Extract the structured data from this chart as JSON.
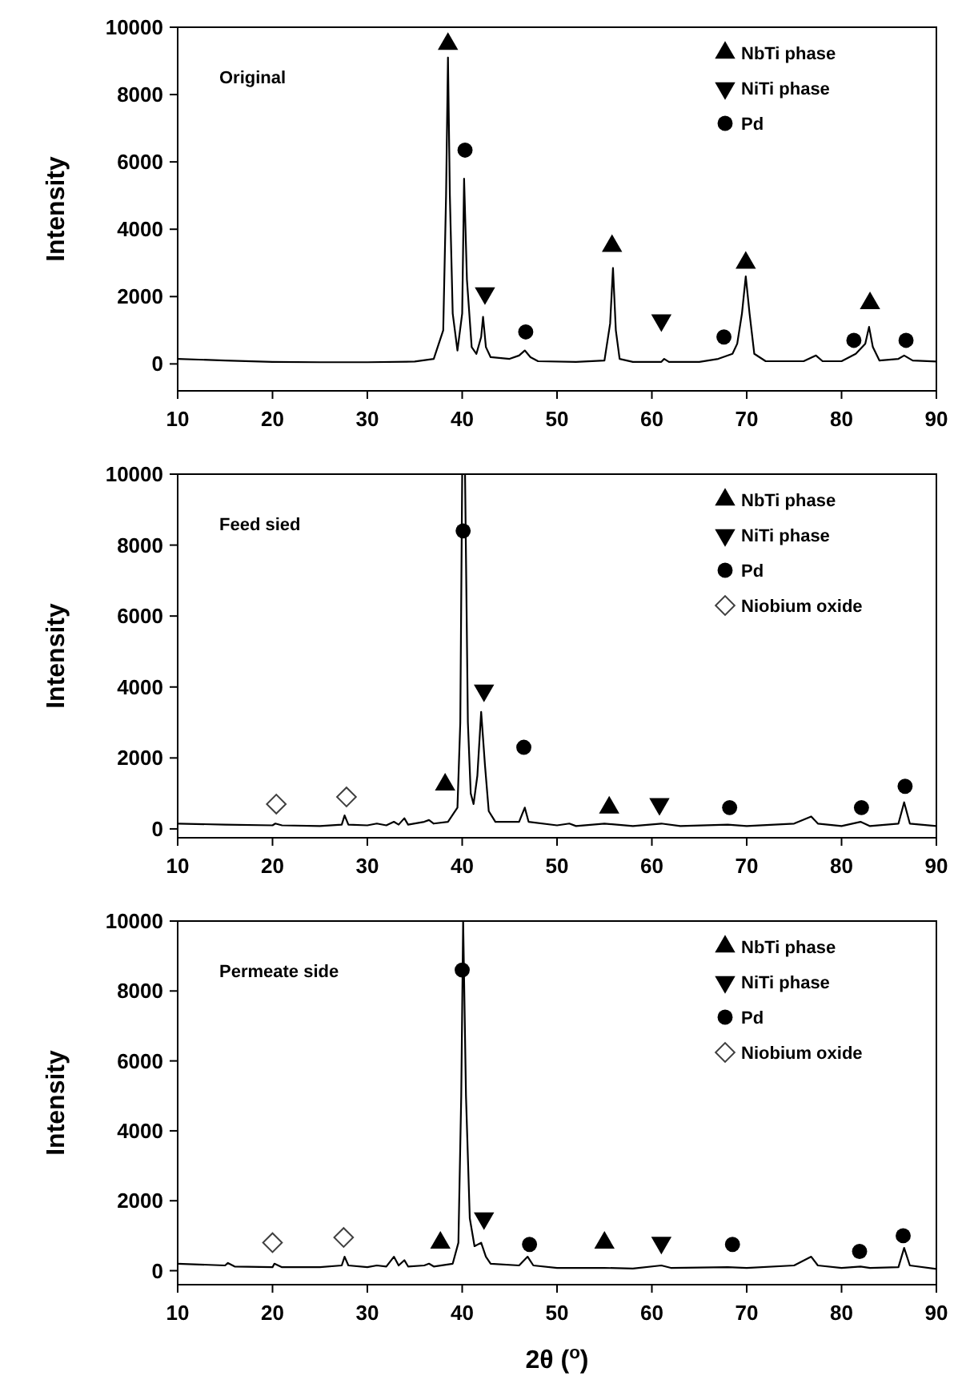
{
  "chart_data": [
    {
      "type": "line",
      "title": "Original",
      "ylabel": "Intensity",
      "xlim": [
        10,
        90
      ],
      "xticks": [
        10,
        20,
        30,
        40,
        50,
        60,
        70,
        80,
        90
      ],
      "ylim": [
        -800,
        10000
      ],
      "yticks": [
        0,
        2000,
        4000,
        6000,
        8000,
        10000
      ],
      "grid": false,
      "legend": "top right",
      "series": [
        {
          "color": "#000000",
          "marker": "none",
          "line_style": "solid",
          "x": [
            10,
            15,
            20,
            25,
            30,
            35,
            37,
            38,
            38.3,
            38.5,
            38.7,
            39,
            39.5,
            40,
            40.2,
            40.5,
            41,
            41.5,
            42,
            42.2,
            42.5,
            43,
            45,
            46,
            46.6,
            47.2,
            48,
            52,
            55,
            55.6,
            55.9,
            56.2,
            56.6,
            58,
            61,
            61.3,
            61.8,
            65,
            67,
            68.5,
            69,
            69.5,
            69.9,
            70.3,
            70.8,
            72,
            76,
            77.3,
            78,
            80,
            81.5,
            82.5,
            82.9,
            83.3,
            84,
            86,
            86.6,
            87.5,
            90
          ],
          "values": [
            150,
            100,
            60,
            50,
            50,
            70,
            150,
            1000,
            5000,
            9100,
            5000,
            1500,
            400,
            1500,
            5500,
            2500,
            500,
            300,
            800,
            1400,
            500,
            200,
            150,
            250,
            400,
            200,
            80,
            60,
            100,
            1200,
            2850,
            1000,
            150,
            60,
            60,
            150,
            60,
            60,
            150,
            300,
            600,
            1500,
            2600,
            1500,
            300,
            80,
            80,
            250,
            80,
            80,
            300,
            600,
            1100,
            500,
            100,
            150,
            250,
            100,
            70
          ]
        },
        {
          "type": "scatter",
          "name": "NbTi phase",
          "color": "#000000",
          "marker": "triangle",
          "x": [
            38.5,
            55.8,
            69.9,
            83
          ],
          "values": [
            9500,
            3500,
            3000,
            1800
          ]
        },
        {
          "type": "scatter",
          "name": "NiTi phase",
          "color": "#000000",
          "marker": "triangle-down",
          "x": [
            42.4,
            61
          ],
          "values": [
            2100,
            1300
          ]
        },
        {
          "type": "scatter",
          "name": "Pd",
          "color": "#000000",
          "marker": "circle",
          "x": [
            40.3,
            46.7,
            67.6,
            81.3,
            86.8
          ],
          "values": [
            6350,
            950,
            800,
            700,
            700
          ]
        }
      ]
    },
    {
      "type": "line",
      "title": "Feed sied",
      "ylabel": "Intensity",
      "xlim": [
        10,
        90
      ],
      "xticks": [
        10,
        20,
        30,
        40,
        50,
        60,
        70,
        80,
        90
      ],
      "ylim": [
        -250,
        10000
      ],
      "yticks": [
        0,
        2000,
        4000,
        6000,
        8000,
        10000
      ],
      "grid": false,
      "legend": "top right",
      "series": [
        {
          "color": "#000000",
          "marker": "none",
          "line_style": "solid",
          "x": [
            10,
            15,
            20,
            20.3,
            21,
            25,
            27.3,
            27.6,
            28,
            30,
            31,
            32,
            32.8,
            33.3,
            33.9,
            34.3,
            36,
            36.5,
            37,
            38.5,
            39.5,
            39.8,
            40,
            40.3,
            40.6,
            40.9,
            41.2,
            41.6,
            42,
            42.4,
            42.8,
            43.5,
            46,
            46.6,
            47,
            50,
            51.3,
            52,
            55,
            58,
            61,
            63,
            68,
            70,
            75,
            76.8,
            77.5,
            80,
            82,
            83,
            86,
            86.6,
            87.2,
            90
          ],
          "values": [
            150,
            120,
            100,
            150,
            100,
            80,
            120,
            380,
            120,
            100,
            150,
            100,
            200,
            120,
            300,
            120,
            200,
            250,
            150,
            200,
            600,
            3000,
            10000,
            10000,
            3000,
            1000,
            700,
            1500,
            3300,
            1800,
            500,
            200,
            200,
            600,
            200,
            100,
            150,
            80,
            150,
            80,
            150,
            80,
            120,
            80,
            150,
            350,
            150,
            80,
            200,
            80,
            150,
            750,
            150,
            80
          ]
        },
        {
          "type": "scatter",
          "name": "NbTi phase",
          "color": "#000000",
          "marker": "triangle",
          "x": [
            38.2,
            55.5
          ],
          "values": [
            1250,
            600
          ]
        },
        {
          "type": "scatter",
          "name": "NiTi phase",
          "color": "#000000",
          "marker": "triangle-down",
          "x": [
            42.3,
            60.8
          ],
          "values": [
            3900,
            700
          ]
        },
        {
          "type": "scatter",
          "name": "Pd",
          "color": "#000000",
          "marker": "circle",
          "x": [
            40.1,
            46.5,
            68.2,
            82.1,
            86.7
          ],
          "values": [
            8400,
            2300,
            600,
            600,
            1200
          ]
        },
        {
          "type": "scatter",
          "name": "Niobium oxide",
          "color": "#404040",
          "marker": "diamond",
          "x": [
            20.4,
            27.8
          ],
          "values": [
            700,
            900
          ]
        }
      ]
    },
    {
      "type": "line",
      "title": "Permeate side",
      "xlabel": "2θ ($^{o}$)",
      "ylabel": "Intensity",
      "xlim": [
        10,
        90
      ],
      "xticks": [
        10,
        20,
        30,
        40,
        50,
        60,
        70,
        80,
        90
      ],
      "ylim": [
        -400,
        10000
      ],
      "yticks": [
        0,
        2000,
        4000,
        6000,
        8000,
        10000
      ],
      "grid": false,
      "legend": "top right",
      "series": [
        {
          "color": "#000000",
          "marker": "none",
          "line_style": "solid",
          "x": [
            10,
            15,
            15.3,
            16,
            20,
            20.2,
            21,
            25,
            27.3,
            27.6,
            28,
            30,
            31,
            32,
            32.8,
            33.3,
            33.9,
            34.3,
            36,
            36.5,
            37,
            39,
            39.6,
            39.9,
            40.1,
            40.4,
            40.8,
            41.3,
            42,
            42.5,
            43,
            46,
            46.9,
            47.5,
            50,
            55,
            58,
            61,
            62,
            68,
            70,
            75,
            76.8,
            77.5,
            80,
            82,
            83,
            86,
            86.6,
            87.2,
            90
          ],
          "values": [
            200,
            150,
            220,
            120,
            100,
            200,
            100,
            100,
            150,
            400,
            150,
            100,
            150,
            120,
            400,
            150,
            300,
            120,
            150,
            200,
            120,
            200,
            800,
            5000,
            10000,
            5000,
            1500,
            700,
            800,
            400,
            200,
            150,
            400,
            150,
            80,
            80,
            60,
            150,
            80,
            100,
            80,
            150,
            400,
            150,
            80,
            120,
            80,
            100,
            650,
            150,
            50
          ]
        },
        {
          "type": "scatter",
          "name": "NbTi phase",
          "color": "#000000",
          "marker": "triangle",
          "x": [
            37.7,
            55
          ],
          "values": [
            800,
            800
          ]
        },
        {
          "type": "scatter",
          "name": "NiTi phase",
          "color": "#000000",
          "marker": "triangle-down",
          "x": [
            42.3,
            61
          ],
          "values": [
            1500,
            800
          ]
        },
        {
          "type": "scatter",
          "name": "Pd",
          "color": "#000000",
          "marker": "circle",
          "x": [
            40,
            47.1,
            68.5,
            81.9,
            86.5
          ],
          "values": [
            8600,
            750,
            750,
            550,
            1000
          ]
        },
        {
          "type": "scatter",
          "name": "Niobium oxide",
          "color": "#404040",
          "marker": "diamond",
          "x": [
            20,
            27.5
          ],
          "values": [
            800,
            950
          ]
        }
      ]
    }
  ]
}
